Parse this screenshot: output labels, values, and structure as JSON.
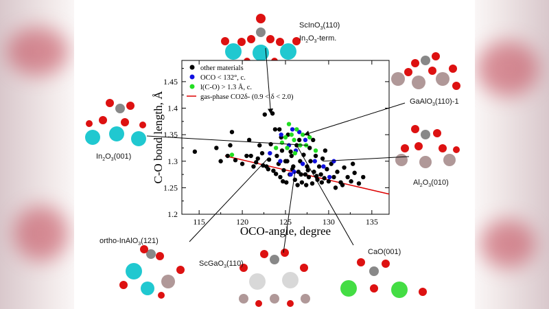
{
  "chart_data": {
    "type": "scatter",
    "xlabel": "OCO-angle, degree",
    "ylabel": "C-O bond length, Å",
    "xlim": [
      113,
      137
    ],
    "ylim": [
      1.2,
      1.49
    ],
    "x_ticks": [
      "115",
      "120",
      "125",
      "130",
      "135"
    ],
    "y_ticks": [
      "1.2",
      "1.25",
      "1.3",
      "1.35",
      "1.4",
      "1.45"
    ],
    "legend_position": "top-left",
    "legend": [
      {
        "label": "other materials",
        "marker": "dot",
        "color": "#000000"
      },
      {
        "label": "OCO < 132°, c.",
        "marker": "dot",
        "color": "#1010e0"
      },
      {
        "label": "l(C-O) > 1.3 Å, c.",
        "marker": "dot",
        "color": "#22dd22"
      },
      {
        "label": "gas-phase CO2δ- (0.9 < δ < 2.0)",
        "marker": "line",
        "color": "#dd0000"
      }
    ],
    "gas_phase_line": {
      "x": [
        118,
        137
      ],
      "y": [
        1.31,
        1.238
      ]
    },
    "series": [
      {
        "name": "other materials",
        "color": "#000000",
        "points": [
          [
            114.5,
            1.318
          ],
          [
            117,
            1.325
          ],
          [
            117.5,
            1.3
          ],
          [
            118.3,
            1.31
          ],
          [
            118.6,
            1.33
          ],
          [
            118.8,
            1.355
          ],
          [
            119.2,
            1.302
          ],
          [
            120,
            1.295
          ],
          [
            120.5,
            1.31
          ],
          [
            120.8,
            1.34
          ],
          [
            121,
            1.31
          ],
          [
            121.3,
            1.29
          ],
          [
            121.6,
            1.298
          ],
          [
            122,
            1.33
          ],
          [
            122.3,
            1.315
          ],
          [
            122.6,
            1.388
          ],
          [
            122.8,
            1.29
          ],
          [
            123.1,
            1.303
          ],
          [
            123.3,
            1.332
          ],
          [
            123.6,
            1.282
          ],
          [
            123.8,
            1.36
          ],
          [
            124,
            1.31
          ],
          [
            124.2,
            1.295
          ],
          [
            124.4,
            1.27
          ],
          [
            124.6,
            1.32
          ],
          [
            124.8,
            1.283
          ],
          [
            125,
            1.3
          ],
          [
            125.1,
            1.26
          ],
          [
            125.3,
            1.35
          ],
          [
            125.5,
            1.275
          ],
          [
            125.7,
            1.31
          ],
          [
            125.9,
            1.29
          ],
          [
            126.1,
            1.265
          ],
          [
            126.3,
            1.33
          ],
          [
            126.5,
            1.28
          ],
          [
            126.7,
            1.3
          ],
          [
            126.9,
            1.26
          ],
          [
            127.1,
            1.312
          ],
          [
            127.3,
            1.275
          ],
          [
            127.5,
            1.29
          ],
          [
            127.7,
            1.27
          ],
          [
            127.9,
            1.3
          ],
          [
            128.1,
            1.258
          ],
          [
            128.3,
            1.28
          ],
          [
            128.5,
            1.31
          ],
          [
            128.7,
            1.265
          ],
          [
            128.9,
            1.29
          ],
          [
            129.1,
            1.275
          ],
          [
            129.3,
            1.305
          ],
          [
            129.5,
            1.268
          ],
          [
            129.8,
            1.285
          ],
          [
            130,
            1.262
          ],
          [
            130.3,
            1.295
          ],
          [
            130.6,
            1.27
          ],
          [
            131,
            1.28
          ],
          [
            131.4,
            1.26
          ],
          [
            131.8,
            1.288
          ],
          [
            132.2,
            1.27
          ],
          [
            132.6,
            1.262
          ],
          [
            133,
            1.278
          ],
          [
            133.5,
            1.258
          ],
          [
            134,
            1.27
          ],
          [
            127.4,
            1.255
          ],
          [
            126.4,
            1.255
          ],
          [
            124.7,
            1.262
          ],
          [
            123.9,
            1.276
          ],
          [
            123,
            1.285
          ],
          [
            122.4,
            1.292
          ],
          [
            121.8,
            1.305
          ],
          [
            125.6,
            1.318
          ],
          [
            126.6,
            1.34
          ],
          [
            127.8,
            1.325
          ],
          [
            129.6,
            1.32
          ],
          [
            128.2,
            1.34
          ],
          [
            124.5,
            1.345
          ],
          [
            123.5,
            1.39
          ],
          [
            124.3,
            1.36
          ],
          [
            125.8,
            1.285
          ],
          [
            126.8,
            1.275
          ],
          [
            127.6,
            1.283
          ],
          [
            128.6,
            1.272
          ],
          [
            129.2,
            1.26
          ],
          [
            130.8,
            1.25
          ],
          [
            131.6,
            1.255
          ],
          [
            132.8,
            1.295
          ],
          [
            125.2,
            1.3
          ]
        ]
      },
      {
        "name": "OCO < 132°, c.",
        "color": "#1010e0",
        "points": [
          [
            123.2,
            1.315
          ],
          [
            124.5,
            1.35
          ],
          [
            125.4,
            1.33
          ],
          [
            125.8,
            1.36
          ],
          [
            126.2,
            1.32
          ],
          [
            126.6,
            1.355
          ],
          [
            127.3,
            1.34
          ],
          [
            128.4,
            1.3
          ],
          [
            129.4,
            1.29
          ],
          [
            130.6,
            1.3
          ],
          [
            126,
            1.28
          ],
          [
            127,
            1.295
          ],
          [
            125.6,
            1.275
          ],
          [
            124.4,
            1.3
          ],
          [
            130.1,
            1.27
          ]
        ]
      },
      {
        "name": "l(C-O) > 1.3 Å, c.",
        "color": "#22dd22",
        "points": [
          [
            118.8,
            1.312
          ],
          [
            123.9,
            1.325
          ],
          [
            124.6,
            1.335
          ],
          [
            125.4,
            1.37
          ],
          [
            125.7,
            1.35
          ],
          [
            126,
            1.34
          ],
          [
            126.3,
            1.36
          ],
          [
            126.7,
            1.33
          ],
          [
            127,
            1.35
          ],
          [
            127.4,
            1.33
          ],
          [
            127.8,
            1.345
          ],
          [
            128.5,
            1.32
          ],
          [
            125.2,
            1.325
          ],
          [
            126.1,
            1.315
          ],
          [
            125,
            1.345
          ]
        ]
      }
    ],
    "annotations": [
      {
        "label": "ScInO3(110) In2O3-term.",
        "target": [
          123.3,
          1.39
        ]
      },
      {
        "label": "GaAlO3(110)-1",
        "target": [
          127.2,
          1.35
        ]
      },
      {
        "label": "In2O3(001)",
        "target": [
          127.6,
          1.33
        ]
      },
      {
        "label": "Al2O3(010)",
        "target": [
          129.3,
          1.3
        ]
      },
      {
        "label": "ortho-InAlO3(121)",
        "target": [
          122.9,
          1.304
        ]
      },
      {
        "label": "ScGaO3(110)",
        "target": [
          126.1,
          1.28
        ]
      },
      {
        "label": "CaO(001)",
        "target": [
          126.3,
          1.33
        ]
      }
    ]
  },
  "labels": {
    "scino3_a": "ScInO",
    "scino3_b": "3",
    "scino3_c": "(110)",
    "scino3_d": "In",
    "scino3_e": "2",
    "scino3_f": "O",
    "scino3_g": "3",
    "scino3_h": "-term.",
    "gaalo3": "GaAlO",
    "gaalo3_sub": "3",
    "gaalo3_rest": "(110)-1",
    "in2o3_a": "In",
    "in2o3_b": "2",
    "in2o3_c": "O",
    "in2o3_d": "3",
    "in2o3_e": "(001)",
    "al2o3_a": "Al",
    "al2o3_b": "2",
    "al2o3_c": "O",
    "al2o3_d": "3",
    "al2o3_e": "(010)",
    "inalo3_a": "ortho-InAlO",
    "inalo3_b": "3",
    "inalo3_c": "(121)",
    "scgao3_a": "ScGaO",
    "scgao3_b": "3",
    "scgao3_c": "(110)",
    "cao": "CaO(001)"
  }
}
